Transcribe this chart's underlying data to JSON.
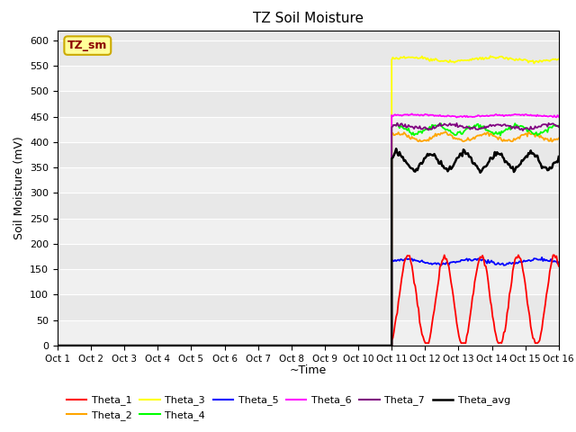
{
  "title": "TZ Soil Moisture",
  "xlabel": "~Time",
  "ylabel": "Soil Moisture (mV)",
  "xlim": [
    0,
    15
  ],
  "ylim": [
    0,
    620
  ],
  "yticks": [
    0,
    50,
    100,
    150,
    200,
    250,
    300,
    350,
    400,
    450,
    500,
    550,
    600
  ],
  "xtick_labels": [
    "Oct 1",
    "Oct 2",
    "Oct 3",
    "Oct 4",
    "Oct 5",
    "Oct 6",
    "Oct 7",
    "Oct 8",
    "Oct 9",
    "Oct 10",
    "Oct 11",
    "Oct 12",
    "Oct 13",
    "Oct 14",
    "Oct 15",
    "Oct 16"
  ],
  "bg_color": "#e8e8e8",
  "bg_color_light": "#f0f0f0",
  "grid_color": "#ffffff",
  "annotation_text": "TZ_sm",
  "annotation_color": "#8b0000",
  "annotation_bg": "#ffff99",
  "annotation_border": "#ccaa00",
  "series_colors": {
    "Theta_1": "red",
    "Theta_2": "orange",
    "Theta_3": "yellow",
    "Theta_4": "lime",
    "Theta_5": "blue",
    "Theta_6": "magenta",
    "Theta_7": "purple",
    "Theta_avg": "black"
  },
  "linewidth": 1.3,
  "linewidth_avg": 1.8,
  "start_day": 10,
  "theta1_mean": 88,
  "theta1_amp": 88,
  "theta1_period": 1.1,
  "theta2_mean": 410,
  "theta2_amp": 7,
  "theta2_period": 1.3,
  "theta3_mean": 563,
  "theta3_amp": 4,
  "theta3_period": 2.5,
  "theta4_mean": 425,
  "theta4_amp": 8,
  "theta4_period": 1.2,
  "theta5_mean": 165,
  "theta5_amp": 5,
  "theta5_period": 2.0,
  "theta6_mean": 452,
  "theta6_amp": 2,
  "theta6_period": 3.0,
  "theta7_mean": 430,
  "theta7_amp": 4,
  "theta7_period": 1.5,
  "thetaavg_mean": 362,
  "thetaavg_amp": 16,
  "thetaavg_period": 1.0
}
